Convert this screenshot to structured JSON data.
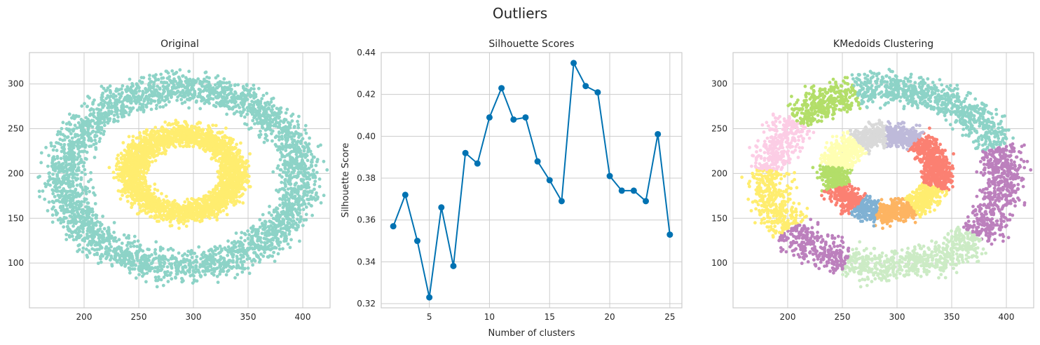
{
  "figure": {
    "suptitle": "Outliers"
  },
  "chart_data": [
    {
      "type": "scatter",
      "title": "Original",
      "xlabel": "",
      "ylabel": "",
      "xlim": [
        150,
        425
      ],
      "ylim": [
        50,
        335
      ],
      "xticks": [
        200,
        250,
        300,
        350,
        400
      ],
      "yticks": [
        100,
        150,
        200,
        250,
        300
      ],
      "grid": true,
      "description_of_data": "two concentric rings of points",
      "rings": [
        {
          "cx": 290,
          "cy": 195,
          "r_inner": 90,
          "r_outer": 125,
          "count": 3200,
          "color": "#8dd3c7"
        },
        {
          "cx": 290,
          "cy": 200,
          "r_inner": 35,
          "r_outer": 60,
          "count": 2600,
          "color": "#ffed6f"
        }
      ]
    },
    {
      "type": "line",
      "title": "Silhouette Scores",
      "xlabel": "Number of clusters",
      "ylabel": "Silhouette Score",
      "xlim": [
        1,
        26
      ],
      "ylim": [
        0.318,
        0.44
      ],
      "xticks": [
        5,
        10,
        15,
        20,
        25
      ],
      "yticks": [
        0.32,
        0.34,
        0.36,
        0.38,
        0.4,
        0.42,
        0.44
      ],
      "yticklabels": [
        "0.32",
        "0.34",
        "0.36",
        "0.38",
        "0.40",
        "0.42",
        "0.44"
      ],
      "grid": true,
      "color": "#0072b2",
      "x": [
        2,
        3,
        4,
        5,
        6,
        7,
        8,
        9,
        10,
        11,
        12,
        13,
        14,
        15,
        16,
        17,
        18,
        19,
        20,
        21,
        22,
        23,
        24,
        25
      ],
      "y": [
        0.357,
        0.372,
        0.35,
        0.323,
        0.366,
        0.338,
        0.392,
        0.387,
        0.409,
        0.423,
        0.408,
        0.409,
        0.388,
        0.379,
        0.369,
        0.435,
        0.424,
        0.421,
        0.381,
        0.374,
        0.374,
        0.369,
        0.401,
        0.353
      ]
    },
    {
      "type": "scatter",
      "title": "KMedoids Clustering",
      "xlabel": "",
      "ylabel": "",
      "xlim": [
        150,
        425
      ],
      "ylim": [
        50,
        335
      ],
      "xticks": [
        200,
        250,
        300,
        350,
        400
      ],
      "yticks": [
        100,
        150,
        200,
        250,
        300
      ],
      "grid": true,
      "rings": [
        {
          "cx": 290,
          "cy": 195,
          "r_inner": 90,
          "r_outer": 125,
          "count": 3200
        },
        {
          "cx": 290,
          "cy": 200,
          "r_inner": 35,
          "r_outer": 60,
          "count": 2600
        }
      ],
      "outer_segments": [
        {
          "from_deg": -90,
          "to_deg": -40,
          "color": "#ccebc5"
        },
        {
          "from_deg": -40,
          "to_deg": 20,
          "color": "#bc80bd"
        },
        {
          "from_deg": 20,
          "to_deg": 60,
          "color": "#8dd3c7"
        },
        {
          "from_deg": 60,
          "to_deg": 105,
          "color": "#8dd3c7"
        },
        {
          "from_deg": 105,
          "to_deg": 140,
          "color": "#b3de69"
        },
        {
          "from_deg": 140,
          "to_deg": 175,
          "color": "#fccde5"
        },
        {
          "from_deg": 175,
          "to_deg": 215,
          "color": "#ffed6f"
        },
        {
          "from_deg": 215,
          "to_deg": 250,
          "color": "#bc80bd"
        },
        {
          "from_deg": 250,
          "to_deg": 270,
          "color": "#ccebc5"
        }
      ],
      "inner_segments": [
        {
          "from_deg": -60,
          "to_deg": -20,
          "color": "#ffed6f"
        },
        {
          "from_deg": -20,
          "to_deg": 20,
          "color": "#fb8072"
        },
        {
          "from_deg": 20,
          "to_deg": 55,
          "color": "#fb8072"
        },
        {
          "from_deg": 55,
          "to_deg": 90,
          "color": "#bebada"
        },
        {
          "from_deg": 90,
          "to_deg": 125,
          "color": "#d9d9d9"
        },
        {
          "from_deg": 125,
          "to_deg": 170,
          "color": "#ffffb3"
        },
        {
          "from_deg": 170,
          "to_deg": 200,
          "color": "#b3de69"
        },
        {
          "from_deg": 200,
          "to_deg": 235,
          "color": "#fb8072"
        },
        {
          "from_deg": 235,
          "to_deg": 260,
          "color": "#80b1d3"
        },
        {
          "from_deg": 260,
          "to_deg": 300,
          "color": "#fdb462"
        }
      ]
    }
  ]
}
